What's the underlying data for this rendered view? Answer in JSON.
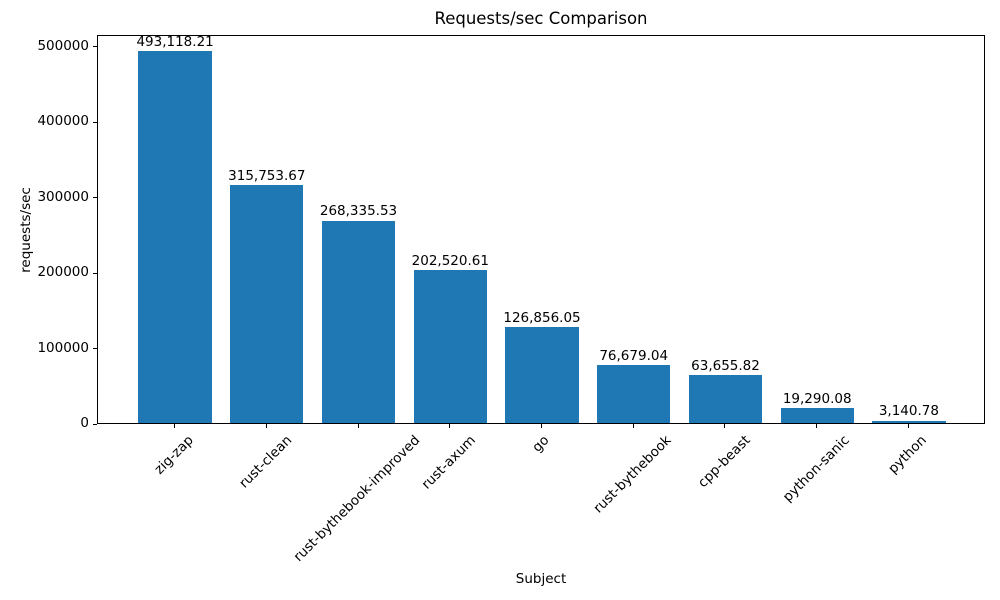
{
  "chart_data": {
    "type": "bar",
    "title": "Requests/sec Comparison",
    "xlabel": "Subject",
    "ylabel": "requests/sec",
    "categories": [
      "zig-zap",
      "rust-clean",
      "rust-bythebook-improved",
      "rust-axum",
      "go",
      "rust-bythebook",
      "cpp-beast",
      "python-sanic",
      "python"
    ],
    "values": [
      493118.21,
      315753.67,
      268335.53,
      202520.61,
      126856.05,
      76679.04,
      63655.82,
      19290.08,
      3140.78
    ],
    "bar_labels": [
      "493,118.21",
      "315,753.67",
      "268,335.53",
      "202,520.61",
      "126,856.05",
      "76,679.04",
      "63,655.82",
      "19,290.08",
      "3,140.78"
    ],
    "yticks": [
      0,
      100000,
      200000,
      300000,
      400000,
      500000
    ],
    "ytick_labels": [
      "0",
      "100000",
      "200000",
      "300000",
      "400000",
      "500000"
    ],
    "ylim": [
      0,
      515650
    ],
    "bar_color": "#1f77b4",
    "axis_color": "#000000",
    "background_color": "#ffffff",
    "grid": false,
    "legend": null
  }
}
